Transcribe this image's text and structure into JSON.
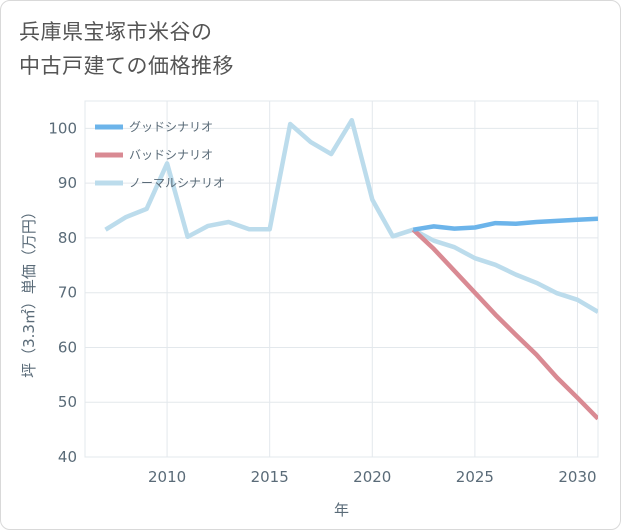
{
  "title": {
    "line1": "兵庫県宝塚市米谷の",
    "line2": "中古戸建ての価格推移"
  },
  "chart_data": {
    "type": "line",
    "title": "兵庫県宝塚市米谷の中古戸建ての価格推移",
    "xlabel": "年",
    "ylabel": "坪（3.3㎡）単価（万円）",
    "xlim": [
      2006,
      2031
    ],
    "ylim": [
      40,
      105
    ],
    "x_ticks": [
      2010,
      2015,
      2020,
      2025,
      2030
    ],
    "y_ticks": [
      40,
      50,
      60,
      70,
      80,
      90,
      100
    ],
    "legend_position": "top-left",
    "series": [
      {
        "name": "グッドシナリオ",
        "color": "#6cb4ea",
        "x": [
          2022,
          2023,
          2024,
          2025,
          2026,
          2027,
          2028,
          2029,
          2030,
          2031
        ],
        "values": [
          81.5,
          82.1,
          81.7,
          81.9,
          82.7,
          82.6,
          82.9,
          83.1,
          83.3,
          83.5
        ]
      },
      {
        "name": "バッドシナリオ",
        "color": "#d98a93",
        "x": [
          2022,
          2023,
          2024,
          2025,
          2026,
          2027,
          2028,
          2029,
          2030,
          2031
        ],
        "values": [
          81.5,
          78.0,
          74.0,
          70.0,
          66.0,
          62.3,
          58.7,
          54.5,
          50.8,
          47.0
        ]
      },
      {
        "name": "ノーマルシナリオ",
        "color": "#bcdcec",
        "x": [
          2007,
          2008,
          2009,
          2010,
          2011,
          2012,
          2013,
          2014,
          2015,
          2016,
          2017,
          2018,
          2019,
          2020,
          2021,
          2022,
          2023,
          2024,
          2025,
          2026,
          2027,
          2028,
          2029,
          2030,
          2031
        ],
        "values": [
          81.5,
          83.8,
          85.3,
          93.6,
          80.2,
          82.2,
          82.9,
          81.6,
          81.6,
          100.8,
          97.5,
          95.3,
          101.5,
          87.0,
          80.3,
          81.5,
          79.5,
          78.3,
          76.3,
          75.1,
          73.3,
          71.8,
          69.9,
          68.7,
          66.5
        ]
      }
    ]
  }
}
